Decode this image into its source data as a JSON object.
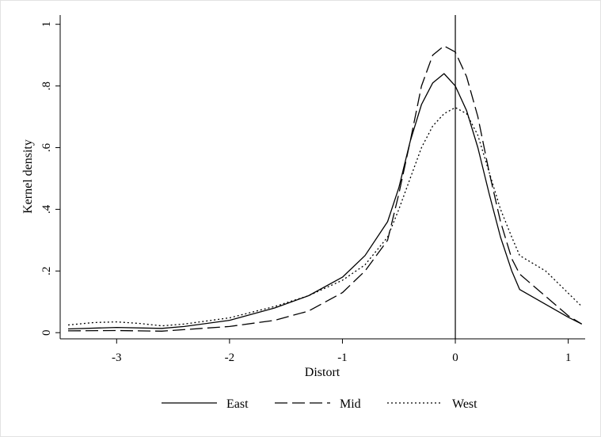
{
  "chart_data": {
    "type": "line",
    "xlabel": "Distort",
    "ylabel": "Kernel density",
    "xlim": [
      -3.5,
      1.15
    ],
    "ylim": [
      -0.02,
      1.03
    ],
    "x_ticks": [
      {
        "value": -3,
        "label": "-3"
      },
      {
        "value": -2,
        "label": "-2"
      },
      {
        "value": -1,
        "label": "-1"
      },
      {
        "value": 0,
        "label": "0"
      },
      {
        "value": 1,
        "label": "1"
      }
    ],
    "y_ticks": [
      {
        "value": 0,
        "label": "0"
      },
      {
        "value": 0.2,
        "label": ".2"
      },
      {
        "value": 0.4,
        "label": ".4"
      },
      {
        "value": 0.6,
        "label": ".6"
      },
      {
        "value": 0.8,
        "label": ".8"
      },
      {
        "value": 1,
        "label": "1"
      }
    ],
    "reference_line_x": 0,
    "grid": false,
    "legend_position": "bottom",
    "series": [
      {
        "name": "East",
        "style": "solid",
        "x": [
          -3.43,
          -3.0,
          -2.6,
          -2.4,
          -2.0,
          -1.6,
          -1.3,
          -1.0,
          -0.8,
          -0.6,
          -0.5,
          -0.4,
          -0.3,
          -0.2,
          -0.1,
          0.0,
          0.1,
          0.2,
          0.3,
          0.4,
          0.5,
          0.57,
          1.0,
          1.12
        ],
        "y": [
          0.012,
          0.017,
          0.014,
          0.02,
          0.04,
          0.08,
          0.12,
          0.18,
          0.25,
          0.36,
          0.47,
          0.62,
          0.74,
          0.81,
          0.84,
          0.8,
          0.72,
          0.6,
          0.45,
          0.31,
          0.2,
          0.14,
          0.05,
          0.028
        ]
      },
      {
        "name": "Mid",
        "style": "dashed",
        "x": [
          -3.43,
          -3.0,
          -2.6,
          -2.0,
          -1.6,
          -1.3,
          -1.0,
          -0.8,
          -0.6,
          -0.5,
          -0.4,
          -0.3,
          -0.2,
          -0.1,
          0.0,
          0.1,
          0.2,
          0.3,
          0.4,
          0.5,
          0.57,
          1.0,
          1.12
        ],
        "y": [
          0.006,
          0.007,
          0.005,
          0.02,
          0.04,
          0.07,
          0.13,
          0.2,
          0.3,
          0.45,
          0.62,
          0.8,
          0.9,
          0.93,
          0.91,
          0.83,
          0.7,
          0.52,
          0.36,
          0.24,
          0.19,
          0.055,
          0.028
        ]
      },
      {
        "name": "West",
        "style": "dotted",
        "x": [
          -3.43,
          -3.2,
          -3.0,
          -2.8,
          -2.6,
          -2.4,
          -2.0,
          -1.6,
          -1.3,
          -1.0,
          -0.8,
          -0.6,
          -0.5,
          -0.4,
          -0.3,
          -0.2,
          -0.1,
          0.0,
          0.1,
          0.2,
          0.3,
          0.4,
          0.5,
          0.57,
          0.8,
          1.12
        ],
        "y": [
          0.025,
          0.033,
          0.035,
          0.03,
          0.022,
          0.028,
          0.048,
          0.085,
          0.12,
          0.17,
          0.22,
          0.31,
          0.4,
          0.5,
          0.6,
          0.67,
          0.71,
          0.73,
          0.71,
          0.64,
          0.52,
          0.4,
          0.31,
          0.25,
          0.2,
          0.085
        ]
      }
    ]
  }
}
